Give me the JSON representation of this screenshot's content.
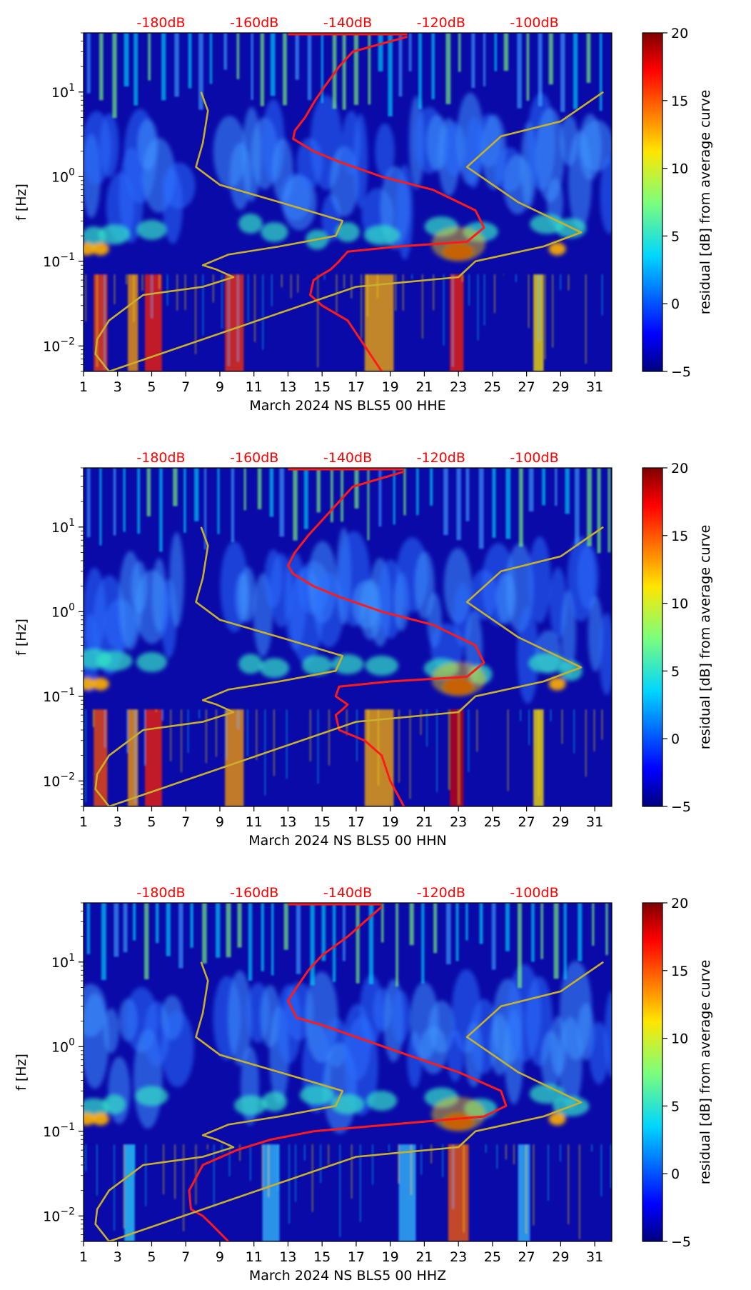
{
  "chart_data": [
    {
      "type": "heatmap",
      "title": "",
      "xlabel": "March 2024 NS BLS5 00 HHE",
      "ylabel": "f [Hz]",
      "x_ticks": [
        1,
        3,
        5,
        7,
        9,
        11,
        13,
        15,
        17,
        19,
        21,
        23,
        25,
        27,
        29,
        31
      ],
      "xlim": [
        1,
        32
      ],
      "y_scale": "log",
      "ylim": [
        0.005,
        50
      ],
      "y_ticks": [
        {
          "value": 0.01,
          "base": "10",
          "exp": "−2"
        },
        {
          "value": 0.1,
          "base": "10",
          "exp": "−1"
        },
        {
          "value": 1,
          "base": "10",
          "exp": "0"
        },
        {
          "value": 10,
          "base": "10",
          "exp": "1"
        }
      ],
      "top_axis_labels": [
        "-180dB",
        "-160dB",
        "-140dB",
        "-120dB",
        "-100dB"
      ],
      "colorbar": {
        "label": "residual [dB] from average curve",
        "range": [
          -5,
          20
        ],
        "ticks": [
          "20",
          "15",
          "10",
          "5",
          "0",
          "−5"
        ]
      },
      "series": [
        {
          "name": "average PSD",
          "color": "#ff1a1a",
          "x": [
            20.0,
            16.8,
            16.0,
            15.2,
            14.6,
            14.0,
            13.4,
            13.3,
            14.5,
            16.0,
            18.5,
            21.5,
            24.0,
            24.5,
            23.5,
            19.5,
            16.5,
            16.0,
            15.5,
            15.0,
            14.5,
            14.3,
            15.0,
            16.5,
            17.5,
            18.5
          ],
          "y": [
            45,
            30,
            20,
            12,
            8,
            5,
            3.5,
            2.8,
            2.0,
            1.5,
            1.0,
            0.7,
            0.4,
            0.25,
            0.17,
            0.15,
            0.13,
            0.1,
            0.08,
            0.07,
            0.06,
            0.04,
            0.03,
            0.02,
            0.01,
            0.005
          ]
        },
        {
          "name": "noise model",
          "color": "#c8b02c",
          "x": [
            7.9,
            8.3,
            8.0,
            7.6,
            9.0,
            12.5,
            16.2,
            15.8,
            12.5,
            9.5,
            8.0,
            8.8,
            9.8,
            8.0,
            4.5,
            2.5,
            1.8,
            1.7,
            2.5,
            17.0,
            23.0,
            24.0,
            28.0,
            30.2,
            26.5,
            23.5,
            25.5,
            29.0,
            31.5
          ],
          "y": [
            10,
            6,
            2.5,
            1.3,
            0.8,
            0.5,
            0.3,
            0.2,
            0.15,
            0.12,
            0.09,
            0.08,
            0.065,
            0.05,
            0.04,
            0.02,
            0.012,
            0.008,
            0.005,
            0.05,
            0.065,
            0.1,
            0.15,
            0.22,
            0.5,
            1.3,
            3.0,
            4.5,
            10
          ]
        }
      ]
    },
    {
      "type": "heatmap",
      "title": "",
      "xlabel": "March 2024 NS BLS5 00 HHN",
      "ylabel": "f [Hz]",
      "x_ticks": [
        1,
        3,
        5,
        7,
        9,
        11,
        13,
        15,
        17,
        19,
        21,
        23,
        25,
        27,
        29,
        31
      ],
      "xlim": [
        1,
        32
      ],
      "y_scale": "log",
      "ylim": [
        0.005,
        50
      ],
      "y_ticks": [
        {
          "value": 0.01,
          "base": "10",
          "exp": "−2"
        },
        {
          "value": 0.1,
          "base": "10",
          "exp": "−1"
        },
        {
          "value": 1,
          "base": "10",
          "exp": "0"
        },
        {
          "value": 10,
          "base": "10",
          "exp": "1"
        }
      ],
      "top_axis_labels": [
        "-180dB",
        "-160dB",
        "-140dB",
        "-120dB",
        "-100dB"
      ],
      "colorbar": {
        "label": "residual [dB] from average curve",
        "range": [
          -5,
          20
        ],
        "ticks": [
          "20",
          "15",
          "10",
          "5",
          "0",
          "−5"
        ]
      },
      "series": [
        {
          "name": "average PSD",
          "color": "#ff1a1a",
          "x": [
            19.8,
            16.8,
            16.0,
            15.0,
            14.2,
            13.4,
            13.0,
            13.3,
            14.5,
            16.0,
            18.5,
            21.5,
            24.0,
            24.5,
            23.5,
            19.0,
            16.0,
            15.8,
            16.5,
            16.2,
            15.8,
            16.0,
            17.5,
            18.5,
            19.0,
            19.8
          ],
          "y": [
            45,
            30,
            20,
            12,
            8,
            5,
            3.5,
            2.8,
            2.0,
            1.5,
            1.0,
            0.7,
            0.4,
            0.25,
            0.17,
            0.15,
            0.13,
            0.1,
            0.08,
            0.07,
            0.06,
            0.04,
            0.03,
            0.02,
            0.01,
            0.005
          ]
        },
        {
          "name": "noise model",
          "color": "#c8b02c",
          "x": [
            7.9,
            8.3,
            8.0,
            7.6,
            9.0,
            12.5,
            16.2,
            15.8,
            12.5,
            9.5,
            8.0,
            8.8,
            9.8,
            8.0,
            4.5,
            2.5,
            1.8,
            1.7,
            2.5,
            17.0,
            23.0,
            24.0,
            28.0,
            30.2,
            26.5,
            23.5,
            25.5,
            29.0,
            31.5
          ],
          "y": [
            10,
            6,
            2.5,
            1.3,
            0.8,
            0.5,
            0.3,
            0.2,
            0.15,
            0.12,
            0.09,
            0.08,
            0.065,
            0.05,
            0.04,
            0.02,
            0.012,
            0.008,
            0.005,
            0.05,
            0.065,
            0.1,
            0.15,
            0.22,
            0.5,
            1.3,
            3.0,
            4.5,
            10
          ]
        }
      ]
    },
    {
      "type": "heatmap",
      "title": "",
      "xlabel": "March 2024 NS BLS5 00 HHZ",
      "ylabel": "f [Hz]",
      "x_ticks": [
        1,
        3,
        5,
        7,
        9,
        11,
        13,
        15,
        17,
        19,
        21,
        23,
        25,
        27,
        29,
        31
      ],
      "xlim": [
        1,
        32
      ],
      "y_scale": "log",
      "ylim": [
        0.005,
        50
      ],
      "y_ticks": [
        {
          "value": 0.01,
          "base": "10",
          "exp": "−2"
        },
        {
          "value": 0.1,
          "base": "10",
          "exp": "−1"
        },
        {
          "value": 1,
          "base": "10",
          "exp": "0"
        },
        {
          "value": 10,
          "base": "10",
          "exp": "1"
        }
      ],
      "top_axis_labels": [
        "-180dB",
        "-160dB",
        "-140dB",
        "-120dB",
        "-100dB"
      ],
      "colorbar": {
        "label": "residual [dB] from average curve",
        "range": [
          -5,
          20
        ],
        "ticks": [
          "20",
          "15",
          "10",
          "5",
          "0",
          "−5"
        ]
      },
      "series": [
        {
          "name": "average PSD",
          "color": "#ff1a1a",
          "x": [
            18.5,
            17.5,
            16.5,
            15.0,
            14.2,
            13.5,
            13.0,
            13.5,
            15.0,
            17.0,
            20.0,
            23.0,
            25.5,
            25.8,
            24.5,
            19.0,
            14.5,
            12.0,
            10.0,
            8.0,
            7.2,
            7.3,
            8.0,
            8.5,
            9.5
          ],
          "y": [
            45,
            30,
            20,
            12,
            8,
            5,
            3.5,
            2.2,
            1.8,
            1.3,
            0.8,
            0.5,
            0.3,
            0.2,
            0.15,
            0.12,
            0.1,
            0.08,
            0.06,
            0.04,
            0.02,
            0.012,
            0.01,
            0.008,
            0.005
          ]
        },
        {
          "name": "noise model",
          "color": "#c8b02c",
          "x": [
            7.9,
            8.3,
            8.0,
            7.6,
            9.0,
            12.5,
            16.2,
            15.8,
            12.5,
            9.5,
            8.0,
            8.8,
            9.8,
            8.0,
            4.5,
            2.5,
            1.8,
            1.7,
            2.5,
            17.0,
            23.0,
            24.0,
            28.0,
            30.2,
            26.5,
            23.5,
            25.5,
            29.0,
            31.5
          ],
          "y": [
            10,
            6,
            2.5,
            1.3,
            0.8,
            0.5,
            0.3,
            0.2,
            0.15,
            0.12,
            0.09,
            0.08,
            0.065,
            0.05,
            0.04,
            0.02,
            0.012,
            0.008,
            0.005,
            0.05,
            0.065,
            0.1,
            0.15,
            0.22,
            0.5,
            1.3,
            3.0,
            4.5,
            10
          ]
        }
      ]
    }
  ]
}
